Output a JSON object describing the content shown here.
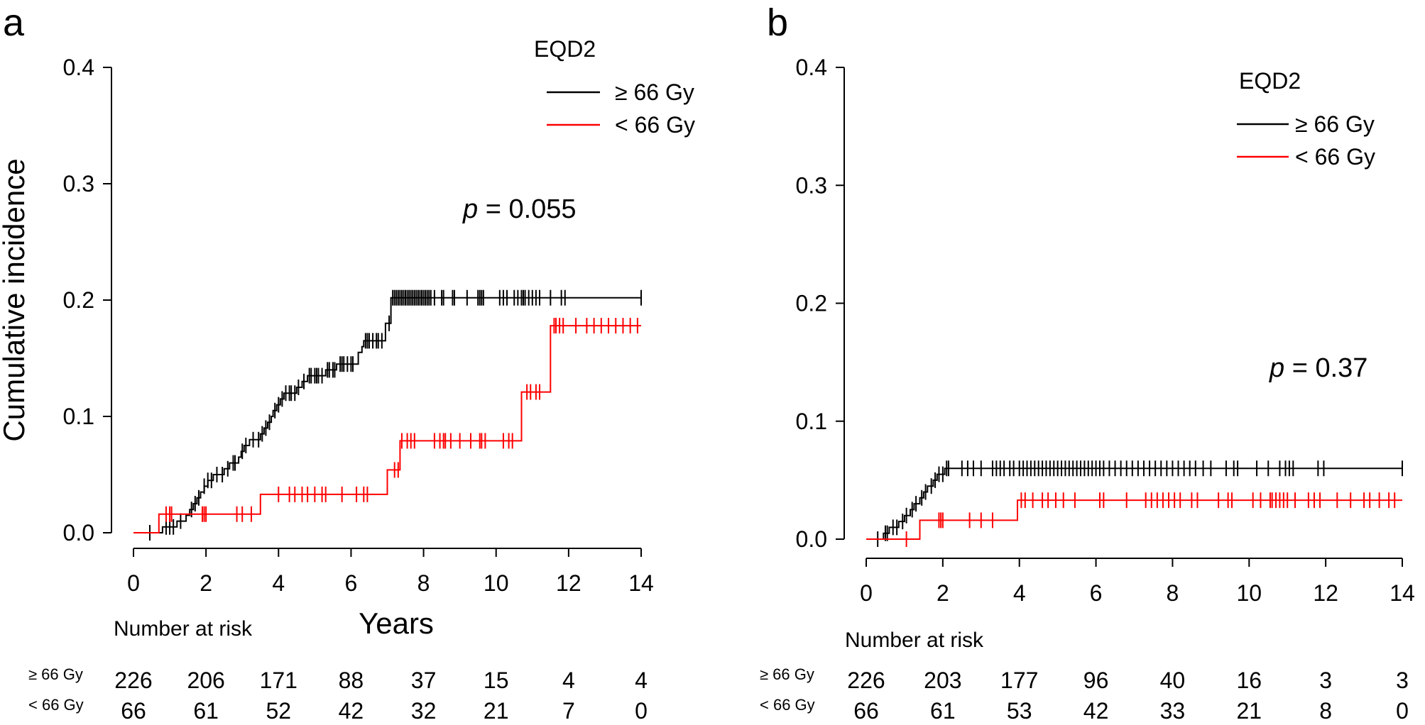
{
  "chart_data": [
    {
      "panel": "a",
      "type": "line",
      "step": true,
      "title": "",
      "xlabel": "Years",
      "ylabel": "Cumulative incidence",
      "xlim": [
        0,
        14
      ],
      "ylim": [
        0,
        0.4
      ],
      "x_ticks": [
        "0",
        "2",
        "4",
        "6",
        "8",
        "10",
        "12",
        "14"
      ],
      "y_ticks": [
        "0.0",
        "0.1",
        "0.2",
        "0.3",
        "0.4"
      ],
      "legend_title": "EQD2",
      "legend_position": "top-right",
      "p_label": "p",
      "p_value": " = 0.055",
      "series": [
        {
          "name": "≥ 66 Gy",
          "color": "#000000",
          "steps": [
            [
              0,
              0
            ],
            [
              0.8,
              0
            ],
            [
              0.8,
              0.005
            ],
            [
              1.2,
              0.005
            ],
            [
              1.2,
              0.01
            ],
            [
              1.45,
              0.01
            ],
            [
              1.45,
              0.015
            ],
            [
              1.55,
              0.015
            ],
            [
              1.55,
              0.02
            ],
            [
              1.65,
              0.02
            ],
            [
              1.65,
              0.025
            ],
            [
              1.75,
              0.025
            ],
            [
              1.75,
              0.03
            ],
            [
              1.85,
              0.03
            ],
            [
              1.85,
              0.035
            ],
            [
              1.95,
              0.035
            ],
            [
              1.95,
              0.04
            ],
            [
              2.05,
              0.04
            ],
            [
              2.05,
              0.045
            ],
            [
              2.2,
              0.045
            ],
            [
              2.2,
              0.05
            ],
            [
              2.5,
              0.05
            ],
            [
              2.5,
              0.055
            ],
            [
              2.65,
              0.055
            ],
            [
              2.65,
              0.06
            ],
            [
              2.9,
              0.06
            ],
            [
              2.9,
              0.065
            ],
            [
              2.97,
              0.065
            ],
            [
              2.97,
              0.07
            ],
            [
              3.05,
              0.07
            ],
            [
              3.05,
              0.075
            ],
            [
              3.2,
              0.075
            ],
            [
              3.2,
              0.08
            ],
            [
              3.5,
              0.08
            ],
            [
              3.5,
              0.085
            ],
            [
              3.6,
              0.085
            ],
            [
              3.6,
              0.09
            ],
            [
              3.7,
              0.09
            ],
            [
              3.7,
              0.095
            ],
            [
              3.8,
              0.095
            ],
            [
              3.8,
              0.1
            ],
            [
              3.85,
              0.1
            ],
            [
              3.85,
              0.105
            ],
            [
              3.95,
              0.105
            ],
            [
              3.95,
              0.11
            ],
            [
              4.05,
              0.11
            ],
            [
              4.05,
              0.115
            ],
            [
              4.15,
              0.115
            ],
            [
              4.15,
              0.12
            ],
            [
              4.5,
              0.12
            ],
            [
              4.5,
              0.125
            ],
            [
              4.65,
              0.125
            ],
            [
              4.65,
              0.13
            ],
            [
              4.8,
              0.13
            ],
            [
              4.8,
              0.135
            ],
            [
              5.3,
              0.135
            ],
            [
              5.3,
              0.14
            ],
            [
              5.6,
              0.14
            ],
            [
              5.6,
              0.145
            ],
            [
              6.2,
              0.145
            ],
            [
              6.2,
              0.155
            ],
            [
              6.3,
              0.155
            ],
            [
              6.3,
              0.16
            ],
            [
              6.35,
              0.16
            ],
            [
              6.35,
              0.165
            ],
            [
              6.95,
              0.165
            ],
            [
              6.95,
              0.18
            ],
            [
              7.1,
              0.18
            ],
            [
              7.1,
              0.202
            ],
            [
              14,
              0.202
            ]
          ],
          "censor_x": [
            0.45,
            0.9,
            1.0,
            1.1,
            1.3,
            1.6,
            1.7,
            1.8,
            1.95,
            2.05,
            2.15,
            2.3,
            2.45,
            2.6,
            2.75,
            2.8,
            3.0,
            3.1,
            3.3,
            3.45,
            3.55,
            3.65,
            3.75,
            3.9,
            4.0,
            4.1,
            4.2,
            4.3,
            4.35,
            4.45,
            4.55,
            4.7,
            4.85,
            4.9,
            5.0,
            5.05,
            5.1,
            5.2,
            5.35,
            5.4,
            5.5,
            5.55,
            5.7,
            5.75,
            5.8,
            5.9,
            6.0,
            6.05,
            6.4,
            6.45,
            6.5,
            6.6,
            6.7,
            6.75,
            6.85,
            7.05,
            7.15,
            7.2,
            7.25,
            7.3,
            7.35,
            7.4,
            7.45,
            7.5,
            7.55,
            7.6,
            7.65,
            7.7,
            7.75,
            7.8,
            7.85,
            7.9,
            7.95,
            8.0,
            8.05,
            8.1,
            8.15,
            8.2,
            8.3,
            8.5,
            8.55,
            8.8,
            8.85,
            9.2,
            9.5,
            9.55,
            9.6,
            9.65,
            10.1,
            10.2,
            10.3,
            10.5,
            10.6,
            10.7,
            10.75,
            10.8,
            10.9,
            11.0,
            11.1,
            11.2,
            11.5,
            11.8,
            11.9,
            14.0
          ]
        },
        {
          "name": "< 66 Gy",
          "color": "#ff0000",
          "steps": [
            [
              0,
              0
            ],
            [
              0.7,
              0
            ],
            [
              0.7,
              0.016
            ],
            [
              3.5,
              0.016
            ],
            [
              3.5,
              0.033
            ],
            [
              7.0,
              0.033
            ],
            [
              7.0,
              0.054
            ],
            [
              7.35,
              0.054
            ],
            [
              7.35,
              0.079
            ],
            [
              10.7,
              0.079
            ],
            [
              10.7,
              0.121
            ],
            [
              11.5,
              0.121
            ],
            [
              11.5,
              0.178
            ],
            [
              14,
              0.178
            ]
          ],
          "censor_x": [
            0.9,
            1.0,
            1.05,
            1.9,
            1.95,
            2.0,
            2.85,
            3.0,
            3.25,
            4.0,
            4.3,
            4.45,
            4.65,
            4.8,
            5.0,
            5.2,
            5.3,
            5.75,
            6.15,
            6.35,
            6.45,
            7.2,
            7.3,
            7.4,
            7.55,
            7.65,
            7.75,
            8.3,
            8.45,
            8.55,
            8.6,
            8.75,
            9.0,
            9.3,
            9.55,
            9.6,
            9.7,
            10.2,
            10.35,
            10.45,
            10.85,
            10.95,
            11.1,
            11.2,
            11.6,
            11.65,
            11.75,
            11.85,
            12.2,
            12.5,
            12.7,
            12.9,
            13.1,
            13.3,
            13.5,
            13.7,
            13.9
          ]
        }
      ],
      "risk_table": {
        "title": "Number at risk",
        "rows": [
          {
            "label": "≥ 66 Gy",
            "values": [
              "226",
              "206",
              "171",
              "88",
              "37",
              "15",
              "4",
              "4"
            ]
          },
          {
            "label": "< 66 Gy",
            "values": [
              "66",
              "61",
              "52",
              "42",
              "32",
              "21",
              "7",
              "0"
            ]
          }
        ]
      }
    },
    {
      "panel": "b",
      "type": "line",
      "step": true,
      "title": "",
      "xlabel": "",
      "ylabel": "",
      "xlim": [
        0,
        14
      ],
      "ylim": [
        0,
        0.4
      ],
      "x_ticks": [
        "0",
        "2",
        "4",
        "6",
        "8",
        "10",
        "12",
        "14"
      ],
      "y_ticks": [
        "0.0",
        "0.1",
        "0.2",
        "0.3",
        "0.4"
      ],
      "legend_title": "EQD2",
      "legend_position": "top-right",
      "p_label": "p",
      "p_value": " = 0.37",
      "series": [
        {
          "name": "≥ 66 Gy",
          "color": "#000000",
          "steps": [
            [
              0,
              0
            ],
            [
              0.45,
              0
            ],
            [
              0.45,
              0.005
            ],
            [
              0.6,
              0.005
            ],
            [
              0.6,
              0.01
            ],
            [
              0.85,
              0.01
            ],
            [
              0.85,
              0.015
            ],
            [
              1.0,
              0.015
            ],
            [
              1.0,
              0.02
            ],
            [
              1.15,
              0.02
            ],
            [
              1.15,
              0.025
            ],
            [
              1.25,
              0.025
            ],
            [
              1.25,
              0.03
            ],
            [
              1.4,
              0.03
            ],
            [
              1.4,
              0.035
            ],
            [
              1.5,
              0.035
            ],
            [
              1.5,
              0.04
            ],
            [
              1.6,
              0.04
            ],
            [
              1.6,
              0.045
            ],
            [
              1.75,
              0.045
            ],
            [
              1.75,
              0.05
            ],
            [
              1.85,
              0.05
            ],
            [
              1.85,
              0.055
            ],
            [
              2.05,
              0.055
            ],
            [
              2.05,
              0.06
            ],
            [
              14,
              0.06
            ]
          ],
          "censor_x": [
            0.3,
            0.5,
            0.55,
            0.7,
            0.8,
            0.95,
            1.05,
            1.2,
            1.3,
            1.45,
            1.55,
            1.7,
            1.8,
            1.9,
            2.0,
            2.1,
            2.15,
            2.5,
            2.65,
            2.8,
            3.0,
            3.3,
            3.4,
            3.5,
            3.6,
            3.75,
            3.85,
            4.0,
            4.1,
            4.2,
            4.3,
            4.4,
            4.5,
            4.6,
            4.7,
            4.8,
            4.9,
            5.0,
            5.1,
            5.2,
            5.3,
            5.4,
            5.5,
            5.6,
            5.7,
            5.8,
            5.9,
            6.0,
            6.1,
            6.2,
            6.35,
            6.5,
            6.65,
            6.8,
            6.95,
            7.1,
            7.25,
            7.4,
            7.55,
            7.7,
            7.85,
            8.0,
            8.15,
            8.3,
            8.45,
            8.6,
            8.8,
            9.0,
            9.4,
            9.6,
            9.7,
            10.2,
            10.5,
            10.8,
            10.95,
            11.05,
            11.15,
            11.8,
            11.95,
            14.0
          ]
        },
        {
          "name": "< 66 Gy",
          "color": "#ff0000",
          "steps": [
            [
              0,
              0
            ],
            [
              1.4,
              0
            ],
            [
              1.4,
              0.016
            ],
            [
              3.95,
              0.016
            ],
            [
              3.95,
              0.033
            ],
            [
              14,
              0.033
            ]
          ],
          "censor_x": [
            1.05,
            1.9,
            1.95,
            2.0,
            2.7,
            3.0,
            3.3,
            4.05,
            4.15,
            4.35,
            4.6,
            4.75,
            4.95,
            5.15,
            5.45,
            6.1,
            6.2,
            6.8,
            7.3,
            7.45,
            7.6,
            7.75,
            7.9,
            8.05,
            8.2,
            8.5,
            8.65,
            9.2,
            9.45,
            9.55,
            10.1,
            10.3,
            10.55,
            10.6,
            10.7,
            10.8,
            10.9,
            11.0,
            11.2,
            11.55,
            11.7,
            11.85,
            12.3,
            12.65,
            13.0,
            13.15,
            13.4,
            13.65,
            13.8
          ]
        }
      ],
      "risk_table": {
        "title": "Number at risk",
        "rows": [
          {
            "label": "≥ 66 Gy",
            "values": [
              "226",
              "203",
              "177",
              "96",
              "40",
              "16",
              "3",
              "3"
            ]
          },
          {
            "label": "< 66 Gy",
            "values": [
              "66",
              "61",
              "53",
              "42",
              "33",
              "21",
              "8",
              "0"
            ]
          }
        ]
      }
    }
  ]
}
